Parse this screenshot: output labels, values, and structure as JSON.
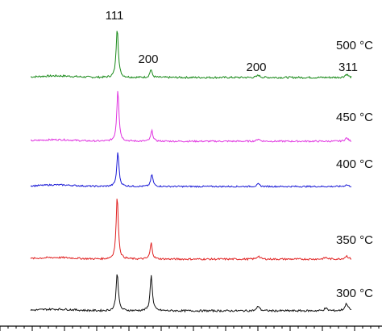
{
  "chart_data": {
    "type": "line",
    "title": "",
    "xlabel": "",
    "ylabel": "",
    "stacked_offset": true,
    "grid": false,
    "legend": "none",
    "peak_labels": [
      "111",
      "200",
      "200",
      "311"
    ],
    "series": [
      {
        "name": "500 °C",
        "color": "#1a8a1a",
        "baseline": 0,
        "peaks": [
          {
            "x": 0.27,
            "h": 62,
            "w": 0.004
          },
          {
            "x": 0.375,
            "h": 10,
            "w": 0.004
          },
          {
            "x": 0.71,
            "h": 3,
            "w": 0.005
          },
          {
            "x": 0.985,
            "h": 4,
            "w": 0.006
          }
        ],
        "noise": 1.2
      },
      {
        "name": "450 °C",
        "color": "#e033e0",
        "baseline": 0,
        "peaks": [
          {
            "x": 0.272,
            "h": 64,
            "w": 0.004
          },
          {
            "x": 0.378,
            "h": 13,
            "w": 0.004
          },
          {
            "x": 0.71,
            "h": 3,
            "w": 0.005
          },
          {
            "x": 0.985,
            "h": 4,
            "w": 0.006
          }
        ],
        "noise": 1.0
      },
      {
        "name": "400 °C",
        "color": "#1a1ad6",
        "baseline": 0,
        "peaks": [
          {
            "x": 0.272,
            "h": 43,
            "w": 0.004
          },
          {
            "x": 0.378,
            "h": 15,
            "w": 0.004
          },
          {
            "x": 0.71,
            "h": 3,
            "w": 0.005
          },
          {
            "x": 0.985,
            "h": 2,
            "w": 0.006
          }
        ],
        "noise": 0.9
      },
      {
        "name": "350 °C",
        "color": "#e02020",
        "baseline": 0,
        "peaks": [
          {
            "x": 0.27,
            "h": 78,
            "w": 0.004
          },
          {
            "x": 0.376,
            "h": 20,
            "w": 0.004
          },
          {
            "x": 0.71,
            "h": 4,
            "w": 0.005
          },
          {
            "x": 0.92,
            "h": 2,
            "w": 0.006
          },
          {
            "x": 0.985,
            "h": 4,
            "w": 0.006
          }
        ],
        "noise": 1.1
      },
      {
        "name": "300 °C",
        "color": "#111111",
        "baseline": 0,
        "peaks": [
          {
            "x": 0.27,
            "h": 48,
            "w": 0.004
          },
          {
            "x": 0.376,
            "h": 45,
            "w": 0.004
          },
          {
            "x": 0.71,
            "h": 6,
            "w": 0.005
          },
          {
            "x": 0.92,
            "h": 3,
            "w": 0.006
          },
          {
            "x": 0.985,
            "h": 9,
            "w": 0.006
          }
        ],
        "noise": 1.2
      }
    ]
  }
}
